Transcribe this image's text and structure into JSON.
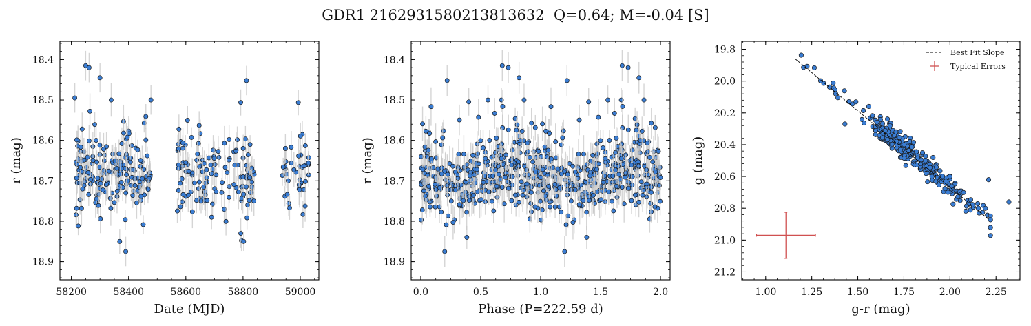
{
  "figure": {
    "suptitle": "GDR1 2162931580213813632  Q=0.64; M=-0.04 [S]",
    "point_color": "#3a7dd3",
    "point_edge_color": "#1a1a1a",
    "errorbar_color": "#c8c8c8",
    "fit_line_color": "#000000",
    "typical_error_color": "#d05050"
  },
  "chart_data": [
    {
      "type": "scatter",
      "id": "lightcurve",
      "xlabel": "Date (MJD)",
      "ylabel": "r (mag)",
      "xlim": [
        58160,
        59065
      ],
      "ylim": [
        18.945,
        18.355
      ],
      "y_inverted": true,
      "xticks": [
        58200,
        58400,
        58600,
        58800,
        59000
      ],
      "yticks": [
        18.4,
        18.5,
        18.6,
        18.7,
        18.8,
        18.9
      ],
      "seasons": [
        {
          "x_start": 58215,
          "x_end": 58480,
          "n": 185
        },
        {
          "x_start": 58570,
          "x_end": 58840,
          "n": 135
        },
        {
          "x_start": 58935,
          "x_end": 59030,
          "n": 40
        }
      ],
      "highlighted_points": [
        {
          "x": 58250,
          "y": 18.415
        },
        {
          "x": 58262,
          "y": 18.42
        },
        {
          "x": 58300,
          "y": 18.445
        },
        {
          "x": 58212,
          "y": 18.495
        },
        {
          "x": 58390,
          "y": 18.875
        },
        {
          "x": 58812,
          "y": 18.452
        },
        {
          "x": 58792,
          "y": 18.83
        },
        {
          "x": 58838,
          "y": 18.75
        },
        {
          "x": 58948,
          "y": 18.62
        }
      ],
      "y_center": 18.685,
      "y_scatter": 0.055
    },
    {
      "type": "scatter",
      "id": "phased",
      "xlabel": "Phase (P=222.59 d)",
      "ylabel": "r (mag)",
      "xlim": [
        -0.08,
        2.08
      ],
      "ylim": [
        18.945,
        18.355
      ],
      "y_inverted": true,
      "xticks": [
        0.0,
        0.5,
        1.0,
        1.5,
        2.0
      ],
      "xtick_labels": [
        "0.0",
        "0.5",
        "1.0",
        "1.5",
        "2.0"
      ],
      "yticks": [
        18.4,
        18.5,
        18.6,
        18.7,
        18.8,
        18.9
      ],
      "period_days": 222.59,
      "n_per_cycle": 360
    },
    {
      "type": "scatter",
      "id": "color_magnitude",
      "xlabel": "g-r (mag)",
      "ylabel": "g (mag)",
      "xlim": [
        0.87,
        2.38
      ],
      "ylim": [
        21.25,
        19.75
      ],
      "y_inverted": true,
      "xticks": [
        1.0,
        1.25,
        1.5,
        1.75,
        2.0,
        2.25
      ],
      "xtick_labels": [
        "1.00",
        "1.25",
        "1.50",
        "1.75",
        "2.00",
        "2.25"
      ],
      "yticks": [
        19.8,
        20.0,
        20.2,
        20.4,
        20.6,
        20.8,
        21.0,
        21.2
      ],
      "best_fit_line": {
        "x": [
          1.16,
          2.21
        ],
        "y": [
          19.86,
          20.87
        ]
      },
      "typical_error": {
        "x": 1.11,
        "y": 20.97,
        "xerr": 0.16,
        "yerr": 0.145
      },
      "n_points": 320,
      "legend": {
        "placement": "upper-right",
        "entries": [
          "Best Fit Slope",
          "Typical Errors"
        ]
      }
    }
  ]
}
